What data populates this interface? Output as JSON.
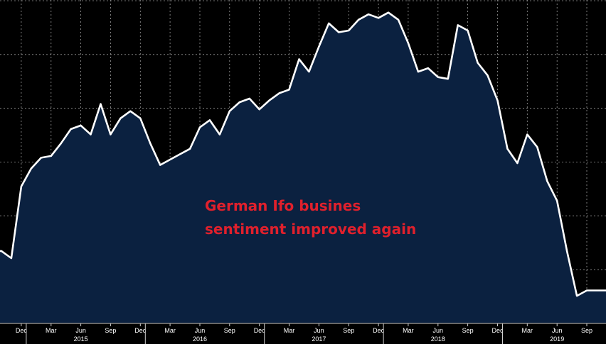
{
  "colors": {
    "background": "#000000",
    "area_fill": "#0b2140",
    "line": "#ffffff",
    "grid": "#9a9a9a",
    "annotation": "#e0202c",
    "axis_text": "#ffffff"
  },
  "chart_data": {
    "type": "area",
    "title": "",
    "xlabel": "",
    "ylabel": "",
    "grid": true,
    "y_gridline_count": 6,
    "series": [
      {
        "values": [
          88.0,
          87.6,
          91.6,
          92.6,
          93.2,
          93.3,
          94.0,
          94.8,
          95.0,
          94.5,
          96.2,
          94.5,
          95.4,
          95.8,
          95.4,
          94.0,
          92.8,
          93.1,
          93.4,
          93.7,
          94.9,
          95.3,
          94.5,
          95.8,
          96.3,
          96.5,
          95.9,
          96.4,
          96.8,
          97.0,
          98.7,
          98.0,
          99.4,
          100.7,
          100.2,
          100.3,
          100.9,
          101.2,
          101.0,
          101.3,
          100.9,
          99.6,
          98.0,
          98.2,
          97.7,
          97.6,
          100.6,
          100.3,
          98.5,
          97.8,
          96.4,
          93.7,
          92.9,
          94.5,
          93.8,
          91.9,
          90.8,
          88.0,
          85.5,
          85.8,
          85.8
        ]
      }
    ],
    "x_start": "2014-10",
    "x_frequency": "monthly",
    "ylim": [
      84.0,
      102.0
    ],
    "x_tick_labels": [
      {
        "label": "Dec",
        "month": "2014-12"
      },
      {
        "label": "Mar",
        "month": "2015-03"
      },
      {
        "label": "Jun",
        "month": "2015-06"
      },
      {
        "label": "Sep",
        "month": "2015-09"
      },
      {
        "label": "Dec",
        "month": "2015-12"
      },
      {
        "label": "Mar",
        "month": "2016-03"
      },
      {
        "label": "Jun",
        "month": "2016-06"
      },
      {
        "label": "Sep",
        "month": "2016-09"
      },
      {
        "label": "Dec",
        "month": "2016-12"
      },
      {
        "label": "Mar",
        "month": "2017-03"
      },
      {
        "label": "Jun",
        "month": "2017-06"
      },
      {
        "label": "Sep",
        "month": "2017-09"
      },
      {
        "label": "Dec",
        "month": "2017-12"
      },
      {
        "label": "Mar",
        "month": "2018-03"
      },
      {
        "label": "Jun",
        "month": "2018-06"
      },
      {
        "label": "Sep",
        "month": "2018-09"
      },
      {
        "label": "Dec",
        "month": "2018-12"
      },
      {
        "label": "Mar",
        "month": "2019-03"
      },
      {
        "label": "Jun",
        "month": "2019-06"
      },
      {
        "label": "Sep",
        "month": "2019-09"
      }
    ],
    "year_labels": [
      {
        "label": "2015",
        "month": "2015-06"
      },
      {
        "label": "2016",
        "month": "2016-06"
      },
      {
        "label": "2017",
        "month": "2017-06"
      },
      {
        "label": "2018",
        "month": "2018-06"
      },
      {
        "label": "2019",
        "month": "2019-06"
      }
    ],
    "annotation": {
      "lines": [
        "German Ifo busines",
        "sentiment improved again"
      ]
    }
  }
}
